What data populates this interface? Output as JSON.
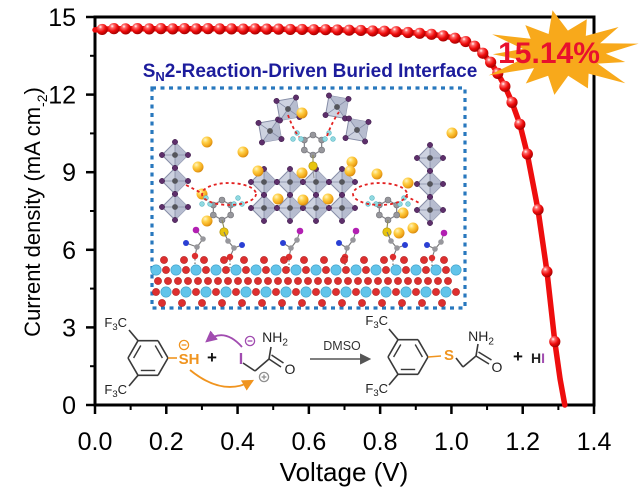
{
  "chart_data": {
    "type": "line",
    "title": "",
    "xlabel": "Voltage (V)",
    "ylabel": "Current density (mA cm⁻²)",
    "ylabel_parts": {
      "pre": "Current density (mA cm",
      "sup": "-2",
      "post": ")"
    },
    "xlim": [
      0.0,
      1.4
    ],
    "ylim": [
      0,
      15
    ],
    "x_tick_values": [
      0.0,
      0.2,
      0.4,
      0.6,
      0.8,
      1.0,
      1.2,
      1.4
    ],
    "x_tick_labels": [
      "0.0",
      "0.2",
      "0.4",
      "0.6",
      "0.8",
      "1.0",
      "1.2",
      "1.4"
    ],
    "x_minor_values": [
      0.1,
      0.3,
      0.5,
      0.7,
      0.9,
      1.1,
      1.3
    ],
    "y_tick_values": [
      0,
      3,
      6,
      9,
      12,
      15
    ],
    "y_tick_labels": [
      "0",
      "3",
      "6",
      "9",
      "12",
      "15"
    ],
    "y_minor_values": [
      1.5,
      4.5,
      7.5,
      10.5,
      13.5
    ],
    "grid": false,
    "legend": null,
    "series": [
      {
        "name": "J-V curve",
        "color": "#EE0E0E",
        "marker": "sphere",
        "points": [
          [
            0.0,
            14.5,
            0
          ],
          [
            0.02,
            14.52,
            1
          ],
          [
            0.053,
            14.55,
            1
          ],
          [
            0.086,
            14.54,
            1
          ],
          [
            0.119,
            14.55,
            1
          ],
          [
            0.152,
            14.54,
            1
          ],
          [
            0.185,
            14.55,
            1
          ],
          [
            0.218,
            14.54,
            1
          ],
          [
            0.251,
            14.55,
            1
          ],
          [
            0.284,
            14.54,
            1
          ],
          [
            0.317,
            14.55,
            1
          ],
          [
            0.35,
            14.54,
            1
          ],
          [
            0.383,
            14.54,
            1
          ],
          [
            0.416,
            14.53,
            1
          ],
          [
            0.449,
            14.54,
            1
          ],
          [
            0.482,
            14.53,
            1
          ],
          [
            0.515,
            14.53,
            1
          ],
          [
            0.548,
            14.52,
            1
          ],
          [
            0.581,
            14.52,
            1
          ],
          [
            0.614,
            14.51,
            1
          ],
          [
            0.647,
            14.51,
            1
          ],
          [
            0.68,
            14.5,
            1
          ],
          [
            0.713,
            14.49,
            1
          ],
          [
            0.746,
            14.48,
            1
          ],
          [
            0.779,
            14.46,
            1
          ],
          [
            0.812,
            14.45,
            1
          ],
          [
            0.845,
            14.43,
            1
          ],
          [
            0.878,
            14.4,
            1
          ],
          [
            0.911,
            14.37,
            1
          ],
          [
            0.944,
            14.33,
            1
          ],
          [
            0.977,
            14.27,
            1
          ],
          [
            1.01,
            14.18,
            1
          ],
          [
            1.04,
            14.05,
            1
          ],
          [
            1.065,
            13.87,
            1
          ],
          [
            1.088,
            13.6,
            1
          ],
          [
            1.11,
            13.25,
            1
          ],
          [
            1.13,
            12.82,
            1
          ],
          [
            1.15,
            12.32,
            1
          ],
          [
            1.17,
            11.7,
            1
          ],
          [
            1.192,
            10.85,
            1
          ],
          [
            1.213,
            9.7,
            1
          ],
          [
            1.243,
            7.55,
            1
          ],
          [
            1.268,
            5.15,
            1
          ],
          [
            1.29,
            2.45,
            1
          ],
          [
            1.305,
            1.0,
            0
          ],
          [
            1.318,
            0.0,
            0
          ]
        ]
      }
    ],
    "annotation": {
      "efficiency": "15.14%",
      "star_color": "#F8A91B",
      "efficiency_color": "#E8112D"
    }
  },
  "headline": {
    "pre": "S",
    "sub": "N",
    "post": "2-Reaction-Driven Buried Interface",
    "color": "#1C1C9C"
  },
  "reaction": {
    "f3c": {
      "pre": "F",
      "sub": "3",
      "post": "C"
    },
    "thiolate": "SH",
    "plus": "+",
    "iodo": "I",
    "amide": {
      "pre": "NH",
      "sub": "2"
    },
    "carbonyl_o": "O",
    "solvent": "DMSO",
    "sulfide": "S",
    "byproduct_h": "H",
    "byproduct_i": "I",
    "minus_charge": "−",
    "plus_charge": "+"
  },
  "inset": {
    "border_color": "#2878BE",
    "palette": {
      "octahedron": "#cdd2e0",
      "octahedron_edge": "#858ca6",
      "iodine_vertex": "#5d2f6b",
      "cation": "#f2b01e",
      "fluorine": "#8fd8e0",
      "carbon": "#97979c",
      "sulfur": "#e8c40e",
      "tin": "#62c4ea",
      "oxygen": "#dd2f2f",
      "nitrogen": "#2a3fd4",
      "molecular_iodine": "#b21fb2",
      "hbond": "#e32222"
    }
  }
}
